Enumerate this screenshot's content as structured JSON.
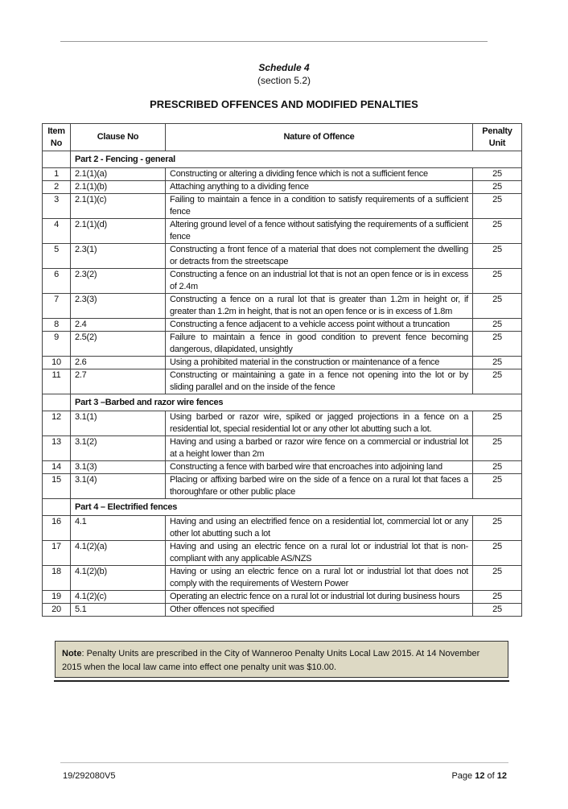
{
  "schedule": {
    "title": "Schedule 4",
    "section": "(section 5.2)"
  },
  "heading": "PRESCRIBED OFFENCES AND MODIFIED PENALTIES",
  "table": {
    "headers": [
      "Item No",
      "Clause No",
      "Nature of Offence",
      "Penalty Unit"
    ],
    "rows": [
      {
        "part": "Part 2 - Fencing - general"
      },
      {
        "item": "1",
        "clause": "2.1(1)(a)",
        "offence": "Constructing or altering a dividing fence which is not a sufficient fence",
        "penalty": "25"
      },
      {
        "item": "2",
        "clause": "2.1(1)(b)",
        "offence": "Attaching anything to a dividing fence",
        "penalty": "25"
      },
      {
        "item": "3",
        "clause": "2.1(1)(c)",
        "offence": "Failing to maintain a fence in a condition to satisfy requirements of a sufficient fence",
        "penalty": "25"
      },
      {
        "item": "4",
        "clause": "2.1(1)(d)",
        "offence": "Altering ground level of a fence without satisfying the requirements of a sufficient fence",
        "penalty": "25"
      },
      {
        "item": "5",
        "clause": "2.3(1)",
        "offence": "Constructing a front fence of a material that does not complement the dwelling or detracts from the streetscape",
        "penalty": "25"
      },
      {
        "item": "6",
        "clause": "2.3(2)",
        "offence": "Constructing a fence on an industrial lot that is not an open fence or is in excess of 2.4m",
        "penalty": "25"
      },
      {
        "item": "7",
        "clause": "2.3(3)",
        "offence": "Constructing a fence on a rural lot that is greater than 1.2m in height or, if greater than 1.2m in height, that is not an open fence or is in excess of 1.8m",
        "penalty": "25"
      },
      {
        "item": "8",
        "clause": "2.4",
        "offence": "Constructing a fence adjacent to a vehicle access point without a truncation",
        "penalty": "25"
      },
      {
        "item": "9",
        "clause": "2.5(2)",
        "offence": "Failure to maintain a fence in good condition to prevent fence becoming dangerous, dilapidated, unsightly",
        "penalty": "25"
      },
      {
        "item": "10",
        "clause": "2.6",
        "offence": "Using a prohibited material in the construction or maintenance of a fence",
        "penalty": "25"
      },
      {
        "item": "11",
        "clause": "2.7",
        "offence": "Constructing or maintaining a gate in a fence not opening into the lot or by sliding parallel and on the inside of the fence",
        "penalty": "25"
      },
      {
        "part": "Part 3 –Barbed and razor wire fences"
      },
      {
        "item": "12",
        "clause": "3.1(1)",
        "offence": "Using barbed or razor wire, spiked or jagged projections in a fence on a residential lot, special residential lot or any other lot abutting such a lot.",
        "penalty": "25"
      },
      {
        "item": "13",
        "clause": "3.1(2)",
        "offence": "Having and using a barbed or razor wire fence on a commercial or industrial lot at a height lower than 2m",
        "penalty": "25"
      },
      {
        "item": "14",
        "clause": "3.1(3)",
        "offence": "Constructing a fence with barbed wire that encroaches into adjoining land",
        "penalty": "25"
      },
      {
        "item": "15",
        "clause": "3.1(4)",
        "offence": "Placing or affixing barbed wire on the side of a fence on a rural lot that faces a thoroughfare or other public place",
        "penalty": "25"
      },
      {
        "part": "Part 4 – Electrified fences"
      },
      {
        "item": "16",
        "clause": "4.1",
        "offence": "Having and using an electrified fence on a residential lot, commercial lot or any other lot abutting such a lot",
        "penalty": "25"
      },
      {
        "item": "17",
        "clause": "4.1(2)(a)",
        "offence": "Having and using an electric fence on a rural lot or industrial lot that is non-compliant with any applicable AS/NZS",
        "penalty": "25"
      },
      {
        "item": "18",
        "clause": "4.1(2)(b)",
        "offence": "Having or using an electric fence on a rural lot or industrial lot that does not comply with the requirements of Western Power",
        "penalty": "25"
      },
      {
        "item": "19",
        "clause": "4.1(2)(c)",
        "offence": "Operating an electric fence on a rural lot or industrial lot during business hours",
        "penalty": "25"
      },
      {
        "item": "20",
        "clause": "5.1",
        "offence": "Other offences not specified",
        "penalty": "25"
      }
    ]
  },
  "note": {
    "label": "Note",
    "text": ": Penalty Units are prescribed in the City of Wanneroo Penalty Units Local Law 2015.  At 14 November 2015 when the local law came into effect one penalty unit was $10.00.",
    "background": "#ddd9c4"
  },
  "footer": {
    "doc_id": "19/292080V5",
    "page_prefix": "Page ",
    "page": "12",
    "of": " of ",
    "total": "12"
  }
}
